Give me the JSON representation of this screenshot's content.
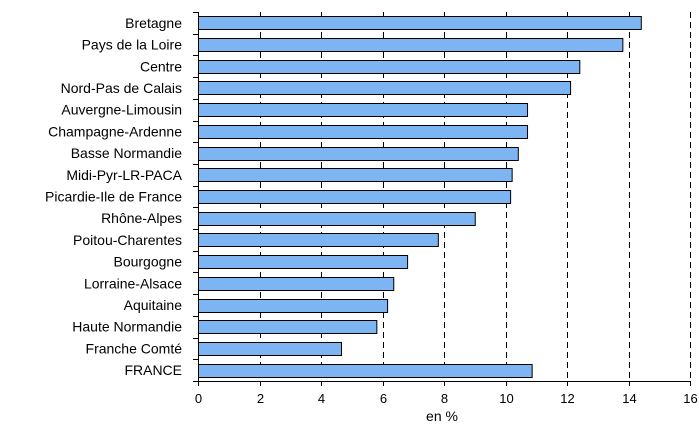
{
  "chart_data": {
    "type": "bar",
    "orientation": "horizontal",
    "categories": [
      "Bretagne",
      "Pays de la Loire",
      "Centre",
      "Nord-Pas de Calais",
      "Auvergne-Limousin",
      "Champagne-Ardenne",
      "Basse Normandie",
      "Midi-Pyr-LR-PACA",
      "Picardie-Ile de France",
      "Rhône-Alpes",
      "Poitou-Charentes",
      "Bourgogne",
      "Lorraine-Alsace",
      "Aquitaine",
      "Haute Normandie",
      "Franche Comté",
      "FRANCE"
    ],
    "values": [
      14.4,
      13.8,
      12.4,
      12.1,
      10.7,
      10.7,
      10.4,
      10.2,
      10.15,
      9.0,
      7.8,
      6.8,
      6.35,
      6.15,
      5.8,
      4.65,
      10.85
    ],
    "xlabel": "en %",
    "ylabel": "",
    "xlim": [
      0,
      16
    ],
    "xticks": [
      "0",
      "2",
      "4",
      "6",
      "8",
      "10",
      "12",
      "14",
      "16"
    ],
    "gridlines": "vertical-dashed",
    "bar_color": "#7DB4F2",
    "bar_border_color": "#000000"
  }
}
